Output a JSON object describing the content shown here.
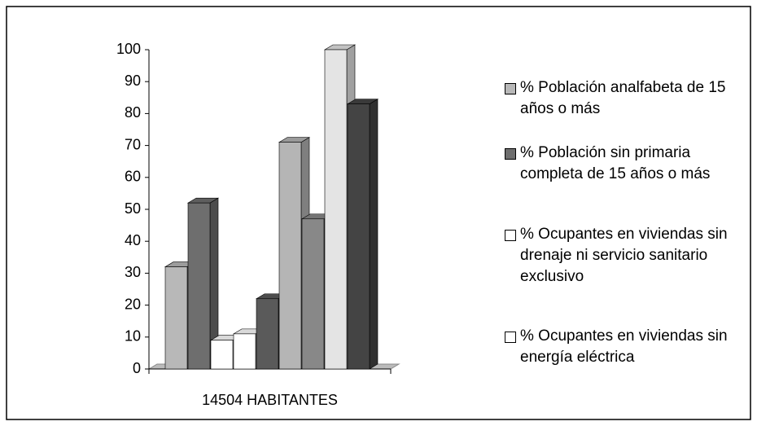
{
  "chart_data": {
    "type": "bar3d",
    "categories": [
      "14504 HABITANTES"
    ],
    "ylim": [
      0,
      100
    ],
    "yticks": [
      0,
      10,
      20,
      30,
      40,
      50,
      60,
      70,
      80,
      90,
      100
    ],
    "series": [
      {
        "name": "% Población analfabeta de 15 años o más",
        "color": "#b8b8b8",
        "values": [
          32
        ]
      },
      {
        "name": "% Población sin primaria completa de 15 años o más",
        "color": "#6e6e6e",
        "values": [
          52
        ]
      },
      {
        "name": "% Ocupantes en viviendas sin drenaje ni servicio sanitario exclusivo",
        "color": "#ffffff",
        "values": [
          9
        ]
      },
      {
        "name": "% Ocupantes en viviendas sin energía eléctrica",
        "color": "#ffffff",
        "values": [
          11
        ]
      },
      {
        "name": null,
        "color": "#5a5a5a",
        "values": [
          22
        ]
      },
      {
        "name": null,
        "color": "#b5b5b5",
        "values": [
          71
        ]
      },
      {
        "name": null,
        "color": "#888888",
        "values": [
          47
        ]
      },
      {
        "name": null,
        "color": "#e4e4e4",
        "values": [
          100
        ]
      },
      {
        "name": null,
        "color": "#444444",
        "values": [
          83
        ]
      }
    ]
  }
}
